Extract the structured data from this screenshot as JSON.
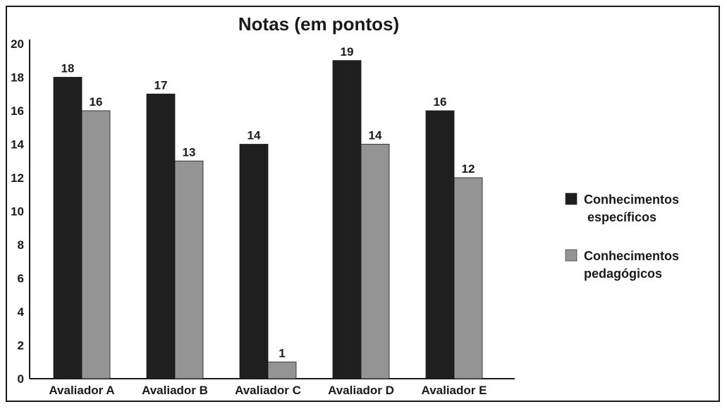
{
  "chart_data": {
    "type": "bar",
    "title": "Notas (em pontos)",
    "xlabel": "",
    "ylabel": "",
    "ylim": [
      0,
      20
    ],
    "yticks": [
      0,
      2,
      4,
      6,
      8,
      10,
      12,
      14,
      16,
      18,
      20
    ],
    "categories": [
      "Avaliador A",
      "Avaliador B",
      "Avaliador C",
      "Avaliador D",
      "Avaliador E"
    ],
    "series": [
      {
        "name": "Conhecimentos\n específicos",
        "color": "#1f1f1f",
        "values": [
          18,
          17,
          14,
          19,
          16
        ]
      },
      {
        "name": "Conhecimentos\npedagógicos",
        "color": "#949494",
        "values": [
          16,
          13,
          1,
          14,
          12
        ]
      }
    ],
    "legend_position": "right",
    "grid": false
  }
}
